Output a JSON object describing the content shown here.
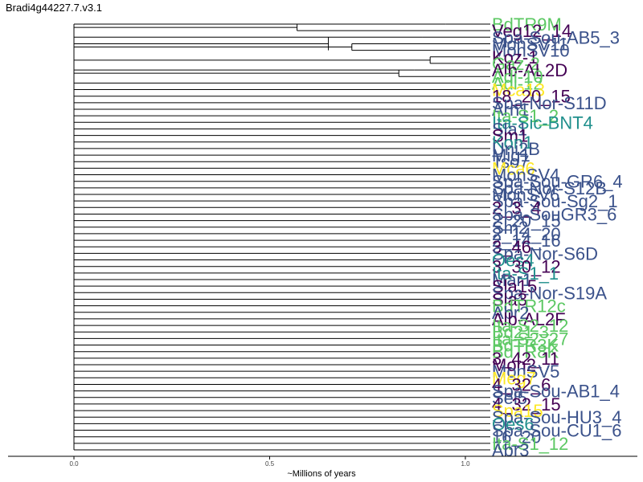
{
  "title": "Bradi4g44227.7.v3.1",
  "chart_data": {
    "type": "dendrogram",
    "title": "Bradi4g44227.7.v3.1",
    "xlabel": "~Millions of years",
    "xlim": [
      0,
      1.05
    ],
    "xticks": [
      0.0,
      0.5,
      1.0
    ],
    "xtick_labels": [
      "0.0",
      "0.5",
      "1.0"
    ],
    "colors": {
      "green": "#5cc863",
      "purple": "#440154",
      "blue": "#3b528b",
      "teal": "#21908d",
      "yellow": "#fde725"
    },
    "tips": [
      {
        "label": "BdTR9M",
        "color": "#5cc863"
      },
      {
        "label": "Veg12_14",
        "color": "#440154"
      },
      {
        "label": "Spa-Sou-AB5_3",
        "color": "#3b528b"
      },
      {
        "label": "MonSV11",
        "color": "#3b528b"
      },
      {
        "label": "MonSV10",
        "color": "#3b528b"
      },
      {
        "label": "Koz-1",
        "color": "#440154"
      },
      {
        "label": "Gaz-2",
        "color": "#5cc863"
      },
      {
        "label": "Alb-AL2D",
        "color": "#440154"
      },
      {
        "label": "Adi-10",
        "color": "#5cc863"
      },
      {
        "label": "Adi-12",
        "color": "#5cc863"
      },
      {
        "label": "Mca13",
        "color": "#fde725"
      },
      {
        "label": "18_20_15",
        "color": "#440154"
      },
      {
        "label": "Spa-Nor-S11D",
        "color": "#3b528b"
      },
      {
        "label": "Arn1",
        "color": "#3b528b"
      },
      {
        "label": "Ita-S1_2",
        "color": "#5cc863"
      },
      {
        "label": "Ita-Sic-BNT4",
        "color": "#21908d"
      },
      {
        "label": "Sla1",
        "color": "#3b528b"
      },
      {
        "label": "Sm1",
        "color": "#440154"
      },
      {
        "label": "Kon1",
        "color": "#21908d"
      },
      {
        "label": "Uni2B",
        "color": "#3b528b"
      },
      {
        "label": "Mig1",
        "color": "#3b528b"
      },
      {
        "label": "Tso7",
        "color": "#3b528b"
      },
      {
        "label": "Mca6",
        "color": "#fde725"
      },
      {
        "label": "MonSV4",
        "color": "#3b528b"
      },
      {
        "label": "Spa-Sou-GR6_4",
        "color": "#3b528b"
      },
      {
        "label": "Spa-Nor-S12B",
        "color": "#3b528b"
      },
      {
        "label": "MonSV6",
        "color": "#3b528b"
      },
      {
        "label": "Spa-Sou-Sg2_1",
        "color": "#3b528b"
      },
      {
        "label": "2_3_4",
        "color": "#440154"
      },
      {
        "label": "Spa-SouGR3_6",
        "color": "#3b528b"
      },
      {
        "label": "2_20_15",
        "color": "#3b528b"
      },
      {
        "label": "Sm2",
        "color": "#3b528b"
      },
      {
        "label": "2_14_20",
        "color": "#3b528b"
      },
      {
        "label": "2_14_16",
        "color": "#3b528b"
      },
      {
        "label": "3_46",
        "color": "#440154"
      },
      {
        "label": "Spa-Nor-S6D",
        "color": "#3b528b"
      },
      {
        "label": "Oes4",
        "color": "#21908d"
      },
      {
        "label": "3_30_12",
        "color": "#440154"
      },
      {
        "label": "Ita-S1_1",
        "color": "#21908d"
      },
      {
        "label": "Mar1",
        "color": "#3b528b"
      },
      {
        "label": "Sla15",
        "color": "#440154"
      },
      {
        "label": "Spa-Nor-S19A",
        "color": "#3b528b"
      },
      {
        "label": "Sla3",
        "color": "#440154"
      },
      {
        "label": "BdTR12c",
        "color": "#5cc863"
      },
      {
        "label": "Abr2",
        "color": "#3b528b"
      },
      {
        "label": "Alb-AL2F",
        "color": "#440154"
      },
      {
        "label": "Ita-S2_12",
        "color": "#5cc863"
      },
      {
        "label": "Bd21-3",
        "color": "#5cc863"
      },
      {
        "label": "Ita-S2_27",
        "color": "#5cc863"
      },
      {
        "label": "BdTR3K",
        "color": "#5cc863"
      },
      {
        "label": "BdTR8K",
        "color": "#5cc863"
      },
      {
        "label": "3_42_11",
        "color": "#440154"
      },
      {
        "label": "Mon2",
        "color": "#440154"
      },
      {
        "label": "MonSV5",
        "color": "#3b528b"
      },
      {
        "label": "Meg7",
        "color": "#fde725"
      },
      {
        "label": "4_32_6",
        "color": "#440154"
      },
      {
        "label": "Spa-Sou-AB1_4",
        "color": "#3b528b"
      },
      {
        "label": "Sel5",
        "color": "#3b528b"
      },
      {
        "label": "4_32_15",
        "color": "#440154"
      },
      {
        "label": "Spa15",
        "color": "#fde725"
      },
      {
        "label": "Spa-Sou-HU3_4",
        "color": "#3b528b"
      },
      {
        "label": "Oes6",
        "color": "#21908d"
      },
      {
        "label": "Spa-Sou-CU1_6",
        "color": "#3b528b"
      },
      {
        "label": "16_20",
        "color": "#3b528b"
      },
      {
        "label": "Ita-S1_12",
        "color": "#5cc863"
      },
      {
        "label": "Abr3",
        "color": "#3b528b"
      }
    ],
    "clades": [
      {
        "from": 0,
        "to": 1,
        "height": 0.57
      },
      {
        "from": 0,
        "to": 0,
        "height": 0.95
      },
      {
        "from": 2,
        "to": 4,
        "height": 0.65
      },
      {
        "from": 2,
        "to": 2,
        "height": 0.89
      },
      {
        "from": 3,
        "to": 4,
        "height": 0.71
      },
      {
        "from": 5,
        "to": 6,
        "height": 0.91
      },
      {
        "from": 7,
        "to": 8,
        "height": 0.83
      },
      {
        "from": 7,
        "to": 7,
        "height": 0.87
      }
    ]
  }
}
